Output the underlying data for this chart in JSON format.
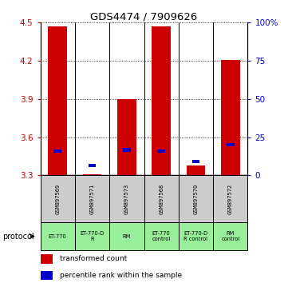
{
  "title": "GDS4474 / 7909626",
  "samples": [
    "GSM897569",
    "GSM897571",
    "GSM897573",
    "GSM897568",
    "GSM897570",
    "GSM897572"
  ],
  "protocols": [
    "ET-770",
    "ET-770-D\nR",
    "RM",
    "ET-770\ncontrol",
    "ET-770-D\nR control",
    "RM\ncontrol"
  ],
  "red_values": [
    4.47,
    3.31,
    3.9,
    4.47,
    3.38,
    4.21
  ],
  "blue_values": [
    3.49,
    3.38,
    3.5,
    3.49,
    3.41,
    3.54
  ],
  "ylim_left": [
    3.3,
    4.5
  ],
  "ylim_right": [
    0,
    100
  ],
  "yticks_left": [
    3.3,
    3.6,
    3.9,
    4.2,
    4.5
  ],
  "yticks_right": [
    0,
    25,
    50,
    75,
    100
  ],
  "ytick_labels_right": [
    "0",
    "25",
    "50",
    "75",
    "100%"
  ],
  "bar_bottom": 3.3,
  "red_color": "#cc0000",
  "blue_color": "#0000cc",
  "bg_gsm": "#cccccc",
  "bg_protocol": "#99ee99",
  "legend_red": "transformed count",
  "legend_blue": "percentile rank within the sample",
  "protocol_label": "protocol",
  "left_axis_color": "#cc0000",
  "right_axis_color": "#0000cc",
  "bar_width": 0.55
}
